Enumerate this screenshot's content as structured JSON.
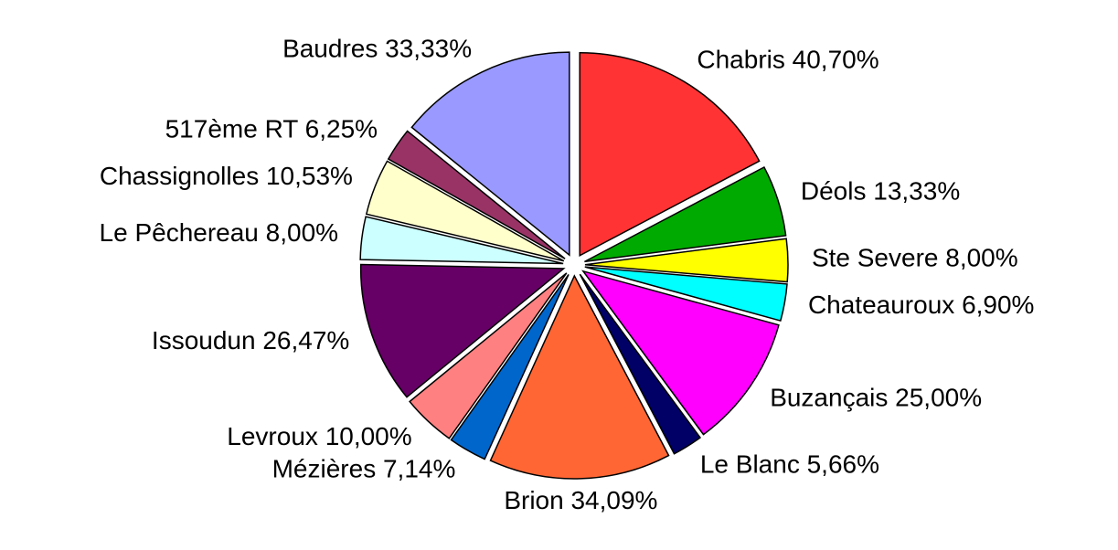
{
  "chart_data": {
    "type": "pie",
    "categories": [
      "Chabris",
      "Déols",
      "Ste Severe",
      "Chateauroux",
      "Buzançais",
      "Le Blanc",
      "Brion",
      "Mézières",
      "Levroux",
      "Issoudun",
      "Le Pêchereau",
      "Chassignolles",
      "517ème RT",
      "Baudres"
    ],
    "values": [
      40.7,
      13.33,
      8.0,
      6.9,
      25.0,
      5.66,
      34.09,
      7.14,
      10.0,
      26.47,
      8.0,
      10.53,
      6.25,
      33.33
    ],
    "value_labels": [
      "40,70%",
      "13,33%",
      "8,00%",
      "6,90%",
      "25,00%",
      "5,66%",
      "34,09%",
      "7,14%",
      "10,00%",
      "26,47%",
      "8,00%",
      "10,53%",
      "6,25%",
      "33,33%"
    ],
    "colors": [
      "#ff3333",
      "#00aa00",
      "#ffff00",
      "#00ffff",
      "#ff00ff",
      "#000066",
      "#ff6633",
      "#0066cc",
      "#ff8080",
      "#660066",
      "#ccffff",
      "#ffffcc",
      "#993366",
      "#9999ff"
    ]
  }
}
